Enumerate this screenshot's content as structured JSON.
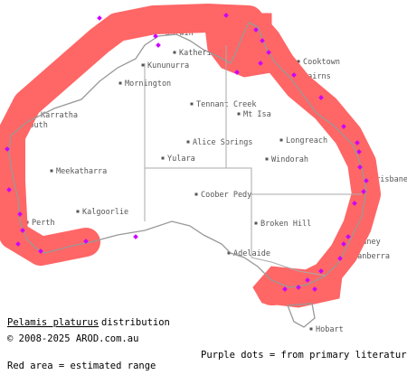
{
  "places": [
    "Darwin",
    "Katherine",
    "Kununurra",
    "Mornington",
    "Karratha",
    "Exmouth",
    "Tennant Creek",
    "Mt Isa",
    "Cooktown",
    "Cairns",
    "Longreach",
    "Alice Springs",
    "Yulara",
    "Windorah",
    "Meekatharra",
    "Brisbane",
    "Coober Pedy",
    "Kalgoorlie",
    "Perth",
    "Broken Hill",
    "Sydney",
    "Adelaide",
    "Canberra",
    "Hobart"
  ],
  "caption": {
    "species": "Pelamis platurus",
    "title_suffix": "distribution",
    "copyright": "© 2008-2025 AROD.com.au",
    "purple_note": "Purple dots = from primary literature",
    "red_note": "Red area = estimated range"
  }
}
